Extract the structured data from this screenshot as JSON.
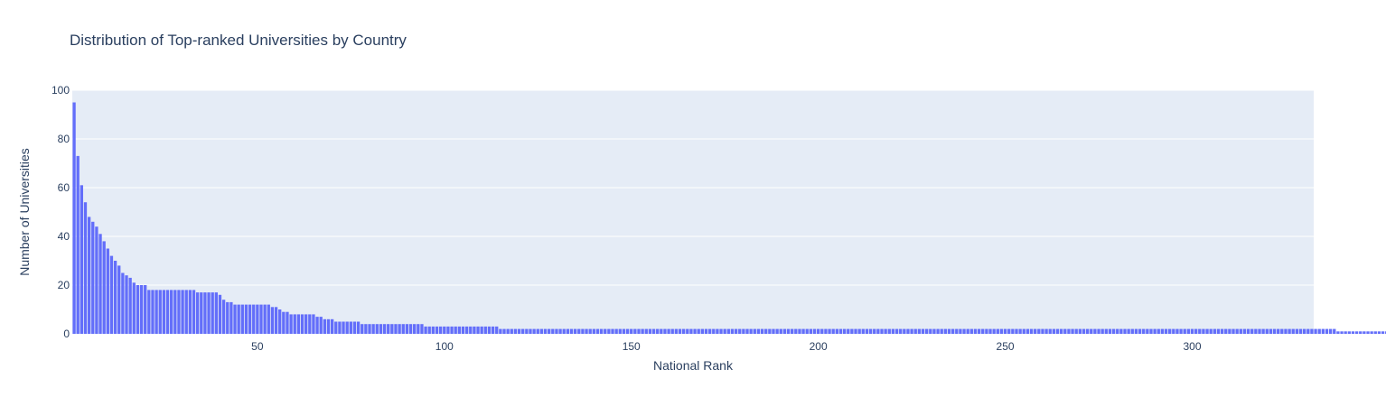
{
  "chart_data": {
    "type": "bar",
    "title": "Distribution of Top-ranked Universities by Country",
    "xlabel": "National Rank",
    "ylabel": "Number of Universities",
    "xlim": [
      0.5,
      332.5
    ],
    "ylim": [
      0,
      100
    ],
    "x_ticks": [
      50,
      100,
      150,
      200,
      250,
      300
    ],
    "y_ticks": [
      0,
      20,
      40,
      60,
      80,
      100
    ],
    "grid": true,
    "legend": "none",
    "bar_color": "#636efa",
    "plot_bg": "#e5ecf6",
    "x_start": 1,
    "values": [
      95,
      73,
      61,
      54,
      48,
      46,
      44,
      41,
      38,
      35,
      32,
      30,
      28,
      25,
      24,
      23,
      21,
      20,
      20,
      20,
      18,
      18,
      18,
      18,
      18,
      18,
      18,
      18,
      18,
      18,
      18,
      18,
      18,
      17,
      17,
      17,
      17,
      17,
      17,
      16,
      14,
      13,
      13,
      12,
      12,
      12,
      12,
      12,
      12,
      12,
      12,
      12,
      12,
      11,
      11,
      10,
      9,
      9,
      8,
      8,
      8,
      8,
      8,
      8,
      8,
      7,
      7,
      6,
      6,
      6,
      5,
      5,
      5,
      5,
      5,
      5,
      5,
      4,
      4,
      4,
      4,
      4,
      4,
      4,
      4,
      4,
      4,
      4,
      4,
      4,
      4,
      4,
      4,
      4,
      3,
      3,
      3,
      3,
      3,
      3,
      3,
      3,
      3,
      3,
      3,
      3,
      3,
      3,
      3,
      3,
      3,
      3,
      3,
      3,
      2,
      2,
      2,
      2,
      2,
      2,
      2,
      2,
      2,
      2,
      2,
      2,
      2,
      2,
      2,
      2,
      2,
      2,
      2,
      2,
      2,
      2,
      2,
      2,
      2,
      2,
      2,
      2,
      2,
      2,
      2,
      2,
      2,
      2,
      2,
      2,
      2,
      2,
      2,
      2,
      2,
      2,
      2,
      2,
      2,
      2,
      2,
      2,
      2,
      2,
      2,
      2,
      2,
      2,
      2,
      2,
      2,
      2,
      2,
      2,
      2,
      2,
      2,
      2,
      2,
      2,
      2,
      2,
      2,
      2,
      2,
      2,
      2,
      2,
      2,
      2,
      2,
      2,
      2,
      2,
      2,
      2,
      2,
      2,
      2,
      2,
      2,
      2,
      2,
      2,
      2,
      2,
      2,
      2,
      2,
      2,
      2,
      2,
      2,
      2,
      2,
      2,
      2,
      2,
      2,
      2,
      2,
      2,
      2,
      2,
      2,
      2,
      2,
      2,
      2,
      2,
      2,
      2,
      2,
      2,
      2,
      2,
      2,
      2,
      2,
      2,
      2,
      2,
      2,
      2,
      2,
      2,
      2,
      2,
      2,
      2,
      2,
      2,
      2,
      2,
      2,
      2,
      2,
      2,
      2,
      2,
      2,
      2,
      2,
      2,
      2,
      2,
      2,
      2,
      2,
      2,
      2,
      2,
      2,
      2,
      2,
      2,
      2,
      2,
      2,
      2,
      2,
      2,
      2,
      2,
      2,
      2,
      2,
      2,
      2,
      2,
      2,
      2,
      2,
      2,
      2,
      2,
      2,
      2,
      2,
      2,
      2,
      2,
      2,
      2,
      2,
      2,
      2,
      2,
      2,
      2,
      2,
      2,
      2,
      2,
      2,
      2,
      2,
      2,
      2,
      2,
      2,
      2,
      2,
      2,
      2,
      2,
      2,
      2,
      2,
      2,
      2,
      2,
      2,
      2,
      2,
      2,
      2,
      2,
      1,
      1,
      1,
      1,
      1,
      1,
      1,
      1,
      1,
      1,
      1,
      1,
      1,
      1,
      1,
      1,
      1,
      1
    ]
  }
}
